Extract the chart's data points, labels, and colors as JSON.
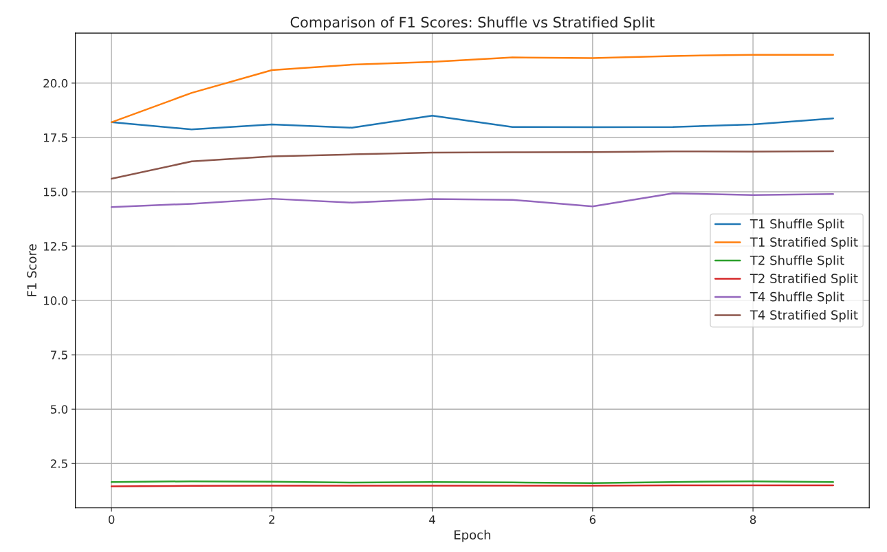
{
  "chart_data": {
    "type": "line",
    "title": "Comparison of F1 Scores: Shuffle vs Stratified Split",
    "xlabel": "Epoch",
    "ylabel": "F1 Score",
    "x": [
      0,
      1,
      2,
      3,
      4,
      5,
      6,
      7,
      8,
      9
    ],
    "series": [
      {
        "name": "T1 Shuffle Split",
        "color": "#1f77b4",
        "values": [
          18.2,
          17.87,
          18.1,
          17.95,
          18.5,
          17.98,
          17.97,
          17.98,
          18.1,
          18.38
        ]
      },
      {
        "name": "T1 Stratified Split",
        "color": "#ff7f0e",
        "values": [
          18.2,
          19.55,
          20.6,
          20.85,
          20.98,
          21.18,
          21.15,
          21.25,
          21.3,
          21.3
        ]
      },
      {
        "name": "T2 Shuffle Split",
        "color": "#2ca02c",
        "values": [
          1.65,
          1.68,
          1.66,
          1.62,
          1.65,
          1.63,
          1.6,
          1.65,
          1.68,
          1.65
        ]
      },
      {
        "name": "T2 Stratified Split",
        "color": "#d62728",
        "values": [
          1.45,
          1.47,
          1.48,
          1.48,
          1.48,
          1.48,
          1.48,
          1.5,
          1.5,
          1.5
        ]
      },
      {
        "name": "T4 Shuffle Split",
        "color": "#9467bd",
        "values": [
          14.3,
          14.45,
          14.68,
          14.5,
          14.67,
          14.63,
          14.33,
          14.93,
          14.85,
          14.9
        ]
      },
      {
        "name": "T4 Stratified Split",
        "color": "#8c564b",
        "values": [
          15.6,
          16.4,
          16.63,
          16.72,
          16.8,
          16.82,
          16.83,
          16.86,
          16.85,
          16.87
        ]
      }
    ],
    "xlim": [
      -0.45,
      9.45
    ],
    "ylim": [
      0.46,
      22.3
    ],
    "xticks": [
      0,
      2,
      4,
      6,
      8
    ],
    "yticks": [
      2.5,
      {
        "value": 5,
        "label": "5.0"
      },
      7.5,
      {
        "value": 10,
        "label": "10.0"
      },
      12.5,
      {
        "value": 15,
        "label": "15.0"
      },
      17.5,
      {
        "value": 20,
        "label": "20.0"
      }
    ],
    "grid": true,
    "legend": "center right"
  }
}
